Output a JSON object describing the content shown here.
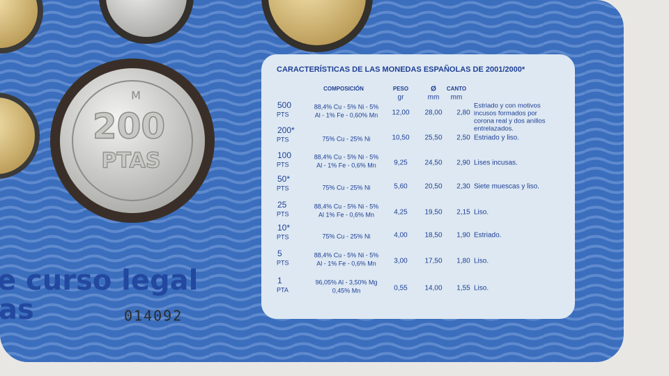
{
  "card": {
    "legend_line_1": "e curso legal",
    "legend_line_2": "as",
    "serial": "014092",
    "coin": {
      "value": "200",
      "unit": "PTAS",
      "mint": "M"
    }
  },
  "table": {
    "title": "CARACTERÍSTICAS DE LAS MONEDAS ESPAÑOLAS DE 2001/2000*",
    "headers": {
      "composition": "COMPOSICIÓN",
      "weight": [
        "PESO",
        "gr"
      ],
      "diameter": [
        "Ø",
        "mm"
      ],
      "edge": [
        "CANTO",
        "mm"
      ]
    },
    "rows": [
      {
        "value": "500",
        "unit": "PTS",
        "composition": [
          "88,4% Cu - 5% Ni - 5%",
          "Al - 1% Fe - 0,60% Mn"
        ],
        "weight": "12,00",
        "diameter": "28,00",
        "edge": "2,80",
        "description": [
          "Estriado y con motivos",
          "incusos formados por",
          "corona real y dos anillos",
          "entrelazados."
        ]
      },
      {
        "value": "200*",
        "unit": "PTS",
        "composition": [
          "75% Cu - 25% Ni"
        ],
        "weight": "10,50",
        "diameter": "25,50",
        "edge": "2,50",
        "description": [
          "Estriado y liso."
        ]
      },
      {
        "value": "100",
        "unit": "PTS",
        "composition": [
          "88,4% Cu - 5% Ni - 5%",
          "Al - 1% Fe - 0,6% Mn"
        ],
        "weight": "9,25",
        "diameter": "24,50",
        "edge": "2,90",
        "description": [
          "Lises incusas."
        ]
      },
      {
        "value": "50*",
        "unit": "PTS",
        "composition": [
          "75% Cu - 25% Ni"
        ],
        "weight": "5,60",
        "diameter": "20,50",
        "edge": "2,30",
        "description": [
          "Siete muescas y liso."
        ]
      },
      {
        "value": "25",
        "unit": "PTS",
        "composition": [
          "88,4% Cu - 5% Ni - 5%",
          "Al 1% Fe - 0,6% Mn"
        ],
        "weight": "4,25",
        "diameter": "19,50",
        "edge": "2,15",
        "description": [
          "Liso."
        ]
      },
      {
        "value": "10*",
        "unit": "PTS",
        "composition": [
          "75% Cu - 25% Ni"
        ],
        "weight": "4,00",
        "diameter": "18,50",
        "edge": "1,90",
        "description": [
          "Estriado."
        ]
      },
      {
        "value": "5",
        "unit": "PTS",
        "composition": [
          "88,4% Cu - 5% Ni - 5%",
          "Al - 1% Fe - 0,6% Mn"
        ],
        "weight": "3,00",
        "diameter": "17,50",
        "edge": "1,80",
        "description": [
          "Liso."
        ]
      },
      {
        "value": "1",
        "unit": "PTA",
        "composition": [
          "96,05% Al - 3,50% Mg",
          "0,45% Mn"
        ],
        "weight": "0,55",
        "diameter": "14,00",
        "edge": "1,55",
        "description": [
          "Liso."
        ]
      }
    ]
  }
}
